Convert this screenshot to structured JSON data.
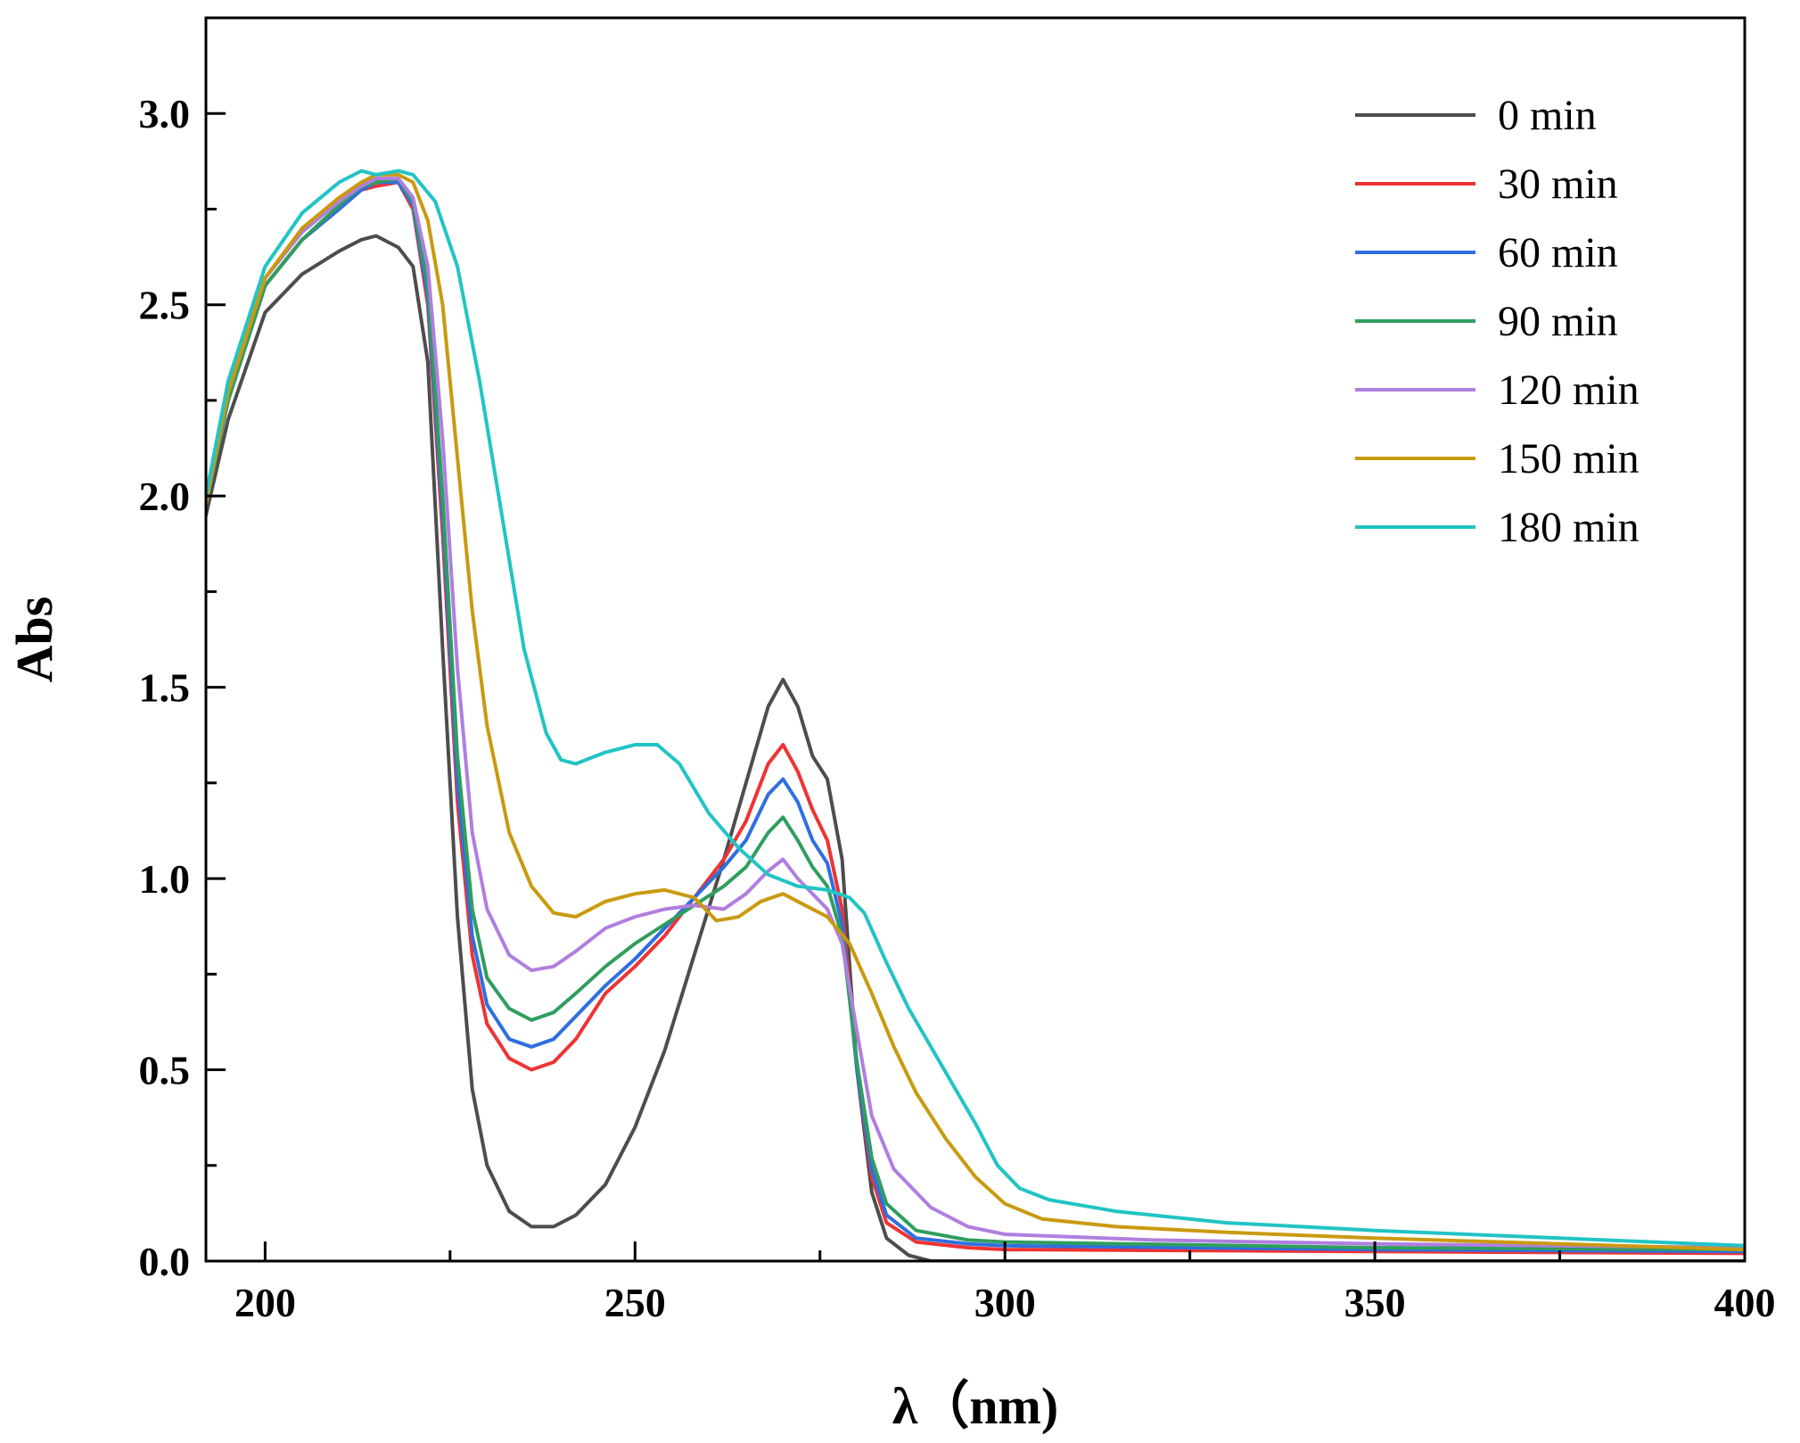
{
  "chart_data": {
    "type": "line",
    "title": "",
    "xlabel": "λ（nm)",
    "ylabel": "Abs",
    "xlim": [
      192,
      400
    ],
    "ylim": [
      0,
      3.25
    ],
    "x_ticks": [
      200,
      250,
      300,
      350,
      400
    ],
    "y_ticks": [
      0.0,
      0.5,
      1.0,
      1.5,
      2.0,
      2.5,
      3.0
    ],
    "x_tick_labels": [
      "200",
      "250",
      "300",
      "350",
      "400"
    ],
    "y_tick_labels": [
      "0.0",
      "0.5",
      "1.0",
      "1.5",
      "2.0",
      "2.5",
      "3.0"
    ],
    "grid": false,
    "legend_position": "top-right",
    "series": [
      {
        "name": "0 min",
        "color": "#4d4d4d",
        "points": [
          [
            192,
            1.95
          ],
          [
            195,
            2.2
          ],
          [
            200,
            2.48
          ],
          [
            205,
            2.58
          ],
          [
            210,
            2.64
          ],
          [
            213,
            2.67
          ],
          [
            215,
            2.68
          ],
          [
            218,
            2.65
          ],
          [
            220,
            2.6
          ],
          [
            222,
            2.35
          ],
          [
            224,
            1.6
          ],
          [
            226,
            0.9
          ],
          [
            228,
            0.45
          ],
          [
            230,
            0.25
          ],
          [
            233,
            0.13
          ],
          [
            236,
            0.09
          ],
          [
            239,
            0.09
          ],
          [
            242,
            0.12
          ],
          [
            246,
            0.2
          ],
          [
            250,
            0.35
          ],
          [
            254,
            0.55
          ],
          [
            258,
            0.8
          ],
          [
            262,
            1.05
          ],
          [
            265,
            1.25
          ],
          [
            268,
            1.45
          ],
          [
            270,
            1.52
          ],
          [
            272,
            1.45
          ],
          [
            274,
            1.32
          ],
          [
            276,
            1.26
          ],
          [
            278,
            1.05
          ],
          [
            280,
            0.5
          ],
          [
            282,
            0.18
          ],
          [
            284,
            0.06
          ],
          [
            287,
            0.015
          ],
          [
            290,
            0.0
          ],
          [
            300,
            0.0
          ],
          [
            400,
            0.0
          ]
        ]
      },
      {
        "name": "30 min",
        "color": "#ee3333",
        "points": [
          [
            192,
            1.98
          ],
          [
            195,
            2.25
          ],
          [
            200,
            2.55
          ],
          [
            205,
            2.67
          ],
          [
            210,
            2.75
          ],
          [
            213,
            2.8
          ],
          [
            215,
            2.81
          ],
          [
            218,
            2.82
          ],
          [
            220,
            2.75
          ],
          [
            222,
            2.5
          ],
          [
            224,
            1.9
          ],
          [
            226,
            1.2
          ],
          [
            228,
            0.8
          ],
          [
            230,
            0.62
          ],
          [
            233,
            0.53
          ],
          [
            236,
            0.5
          ],
          [
            239,
            0.52
          ],
          [
            242,
            0.58
          ],
          [
            246,
            0.7
          ],
          [
            250,
            0.77
          ],
          [
            254,
            0.85
          ],
          [
            258,
            0.95
          ],
          [
            262,
            1.05
          ],
          [
            265,
            1.15
          ],
          [
            268,
            1.3
          ],
          [
            270,
            1.35
          ],
          [
            272,
            1.28
          ],
          [
            274,
            1.18
          ],
          [
            276,
            1.1
          ],
          [
            278,
            0.92
          ],
          [
            280,
            0.5
          ],
          [
            282,
            0.22
          ],
          [
            284,
            0.1
          ],
          [
            288,
            0.05
          ],
          [
            295,
            0.035
          ],
          [
            300,
            0.03
          ],
          [
            350,
            0.025
          ],
          [
            400,
            0.02
          ]
        ]
      },
      {
        "name": "60 min",
        "color": "#2f6fe0",
        "points": [
          [
            192,
            1.98
          ],
          [
            195,
            2.25
          ],
          [
            200,
            2.55
          ],
          [
            205,
            2.67
          ],
          [
            210,
            2.75
          ],
          [
            213,
            2.8
          ],
          [
            215,
            2.82
          ],
          [
            218,
            2.82
          ],
          [
            220,
            2.76
          ],
          [
            222,
            2.52
          ],
          [
            224,
            1.95
          ],
          [
            226,
            1.25
          ],
          [
            228,
            0.85
          ],
          [
            230,
            0.67
          ],
          [
            233,
            0.58
          ],
          [
            236,
            0.56
          ],
          [
            239,
            0.58
          ],
          [
            242,
            0.64
          ],
          [
            246,
            0.72
          ],
          [
            250,
            0.79
          ],
          [
            254,
            0.87
          ],
          [
            258,
            0.95
          ],
          [
            262,
            1.03
          ],
          [
            265,
            1.1
          ],
          [
            268,
            1.22
          ],
          [
            270,
            1.26
          ],
          [
            272,
            1.2
          ],
          [
            274,
            1.1
          ],
          [
            276,
            1.04
          ],
          [
            278,
            0.88
          ],
          [
            280,
            0.5
          ],
          [
            282,
            0.24
          ],
          [
            284,
            0.12
          ],
          [
            288,
            0.06
          ],
          [
            295,
            0.045
          ],
          [
            300,
            0.04
          ],
          [
            350,
            0.03
          ],
          [
            400,
            0.025
          ]
        ]
      },
      {
        "name": "90 min",
        "color": "#2f9e5e",
        "points": [
          [
            192,
            1.98
          ],
          [
            195,
            2.25
          ],
          [
            200,
            2.55
          ],
          [
            205,
            2.67
          ],
          [
            210,
            2.76
          ],
          [
            213,
            2.81
          ],
          [
            215,
            2.82
          ],
          [
            218,
            2.83
          ],
          [
            220,
            2.77
          ],
          [
            222,
            2.55
          ],
          [
            224,
            2.0
          ],
          [
            226,
            1.32
          ],
          [
            228,
            0.92
          ],
          [
            230,
            0.74
          ],
          [
            233,
            0.66
          ],
          [
            236,
            0.63
          ],
          [
            239,
            0.65
          ],
          [
            242,
            0.7
          ],
          [
            246,
            0.77
          ],
          [
            250,
            0.83
          ],
          [
            254,
            0.88
          ],
          [
            258,
            0.93
          ],
          [
            262,
            0.98
          ],
          [
            265,
            1.03
          ],
          [
            268,
            1.12
          ],
          [
            270,
            1.16
          ],
          [
            272,
            1.1
          ],
          [
            274,
            1.03
          ],
          [
            276,
            0.98
          ],
          [
            278,
            0.85
          ],
          [
            280,
            0.52
          ],
          [
            282,
            0.27
          ],
          [
            284,
            0.15
          ],
          [
            288,
            0.08
          ],
          [
            295,
            0.055
          ],
          [
            300,
            0.05
          ],
          [
            350,
            0.035
          ],
          [
            400,
            0.03
          ]
        ]
      },
      {
        "name": "120 min",
        "color": "#b07ee0",
        "points": [
          [
            192,
            1.98
          ],
          [
            195,
            2.27
          ],
          [
            200,
            2.57
          ],
          [
            205,
            2.69
          ],
          [
            210,
            2.77
          ],
          [
            213,
            2.81
          ],
          [
            215,
            2.83
          ],
          [
            218,
            2.83
          ],
          [
            220,
            2.78
          ],
          [
            222,
            2.6
          ],
          [
            224,
            2.15
          ],
          [
            226,
            1.55
          ],
          [
            228,
            1.12
          ],
          [
            230,
            0.92
          ],
          [
            233,
            0.8
          ],
          [
            236,
            0.76
          ],
          [
            239,
            0.77
          ],
          [
            242,
            0.81
          ],
          [
            246,
            0.87
          ],
          [
            250,
            0.9
          ],
          [
            254,
            0.92
          ],
          [
            258,
            0.93
          ],
          [
            262,
            0.92
          ],
          [
            265,
            0.96
          ],
          [
            268,
            1.02
          ],
          [
            270,
            1.05
          ],
          [
            272,
            1.0
          ],
          [
            274,
            0.96
          ],
          [
            276,
            0.92
          ],
          [
            278,
            0.83
          ],
          [
            280,
            0.6
          ],
          [
            282,
            0.38
          ],
          [
            285,
            0.24
          ],
          [
            290,
            0.14
          ],
          [
            295,
            0.09
          ],
          [
            300,
            0.07
          ],
          [
            320,
            0.055
          ],
          [
            350,
            0.045
          ],
          [
            400,
            0.035
          ]
        ]
      },
      {
        "name": "150 min",
        "color": "#c99a10",
        "points": [
          [
            192,
            1.98
          ],
          [
            195,
            2.27
          ],
          [
            200,
            2.57
          ],
          [
            205,
            2.7
          ],
          [
            210,
            2.78
          ],
          [
            213,
            2.82
          ],
          [
            215,
            2.84
          ],
          [
            218,
            2.84
          ],
          [
            220,
            2.82
          ],
          [
            222,
            2.72
          ],
          [
            224,
            2.5
          ],
          [
            226,
            2.1
          ],
          [
            228,
            1.7
          ],
          [
            230,
            1.4
          ],
          [
            233,
            1.12
          ],
          [
            236,
            0.98
          ],
          [
            239,
            0.91
          ],
          [
            242,
            0.9
          ],
          [
            246,
            0.94
          ],
          [
            250,
            0.96
          ],
          [
            254,
            0.97
          ],
          [
            258,
            0.95
          ],
          [
            261,
            0.89
          ],
          [
            264,
            0.9
          ],
          [
            267,
            0.94
          ],
          [
            270,
            0.96
          ],
          [
            272,
            0.94
          ],
          [
            276,
            0.9
          ],
          [
            279,
            0.83
          ],
          [
            282,
            0.7
          ],
          [
            285,
            0.56
          ],
          [
            288,
            0.44
          ],
          [
            292,
            0.32
          ],
          [
            296,
            0.22
          ],
          [
            300,
            0.15
          ],
          [
            305,
            0.11
          ],
          [
            315,
            0.09
          ],
          [
            330,
            0.075
          ],
          [
            350,
            0.06
          ],
          [
            375,
            0.045
          ],
          [
            400,
            0.03
          ]
        ]
      },
      {
        "name": "180 min",
        "color": "#22c4c4",
        "points": [
          [
            192,
            2.0
          ],
          [
            195,
            2.3
          ],
          [
            200,
            2.6
          ],
          [
            205,
            2.74
          ],
          [
            210,
            2.82
          ],
          [
            213,
            2.85
          ],
          [
            215,
            2.84
          ],
          [
            218,
            2.85
          ],
          [
            220,
            2.84
          ],
          [
            223,
            2.77
          ],
          [
            226,
            2.6
          ],
          [
            229,
            2.3
          ],
          [
            232,
            1.95
          ],
          [
            235,
            1.6
          ],
          [
            238,
            1.38
          ],
          [
            240,
            1.31
          ],
          [
            242,
            1.3
          ],
          [
            246,
            1.33
          ],
          [
            250,
            1.35
          ],
          [
            253,
            1.35
          ],
          [
            256,
            1.3
          ],
          [
            260,
            1.17
          ],
          [
            264,
            1.08
          ],
          [
            268,
            1.01
          ],
          [
            272,
            0.98
          ],
          [
            276,
            0.97
          ],
          [
            279,
            0.95
          ],
          [
            281,
            0.91
          ],
          [
            284,
            0.78
          ],
          [
            287,
            0.66
          ],
          [
            290,
            0.56
          ],
          [
            293,
            0.46
          ],
          [
            296,
            0.36
          ],
          [
            299,
            0.25
          ],
          [
            302,
            0.19
          ],
          [
            306,
            0.16
          ],
          [
            315,
            0.13
          ],
          [
            330,
            0.1
          ],
          [
            350,
            0.08
          ],
          [
            375,
            0.06
          ],
          [
            400,
            0.04
          ]
        ]
      }
    ]
  }
}
